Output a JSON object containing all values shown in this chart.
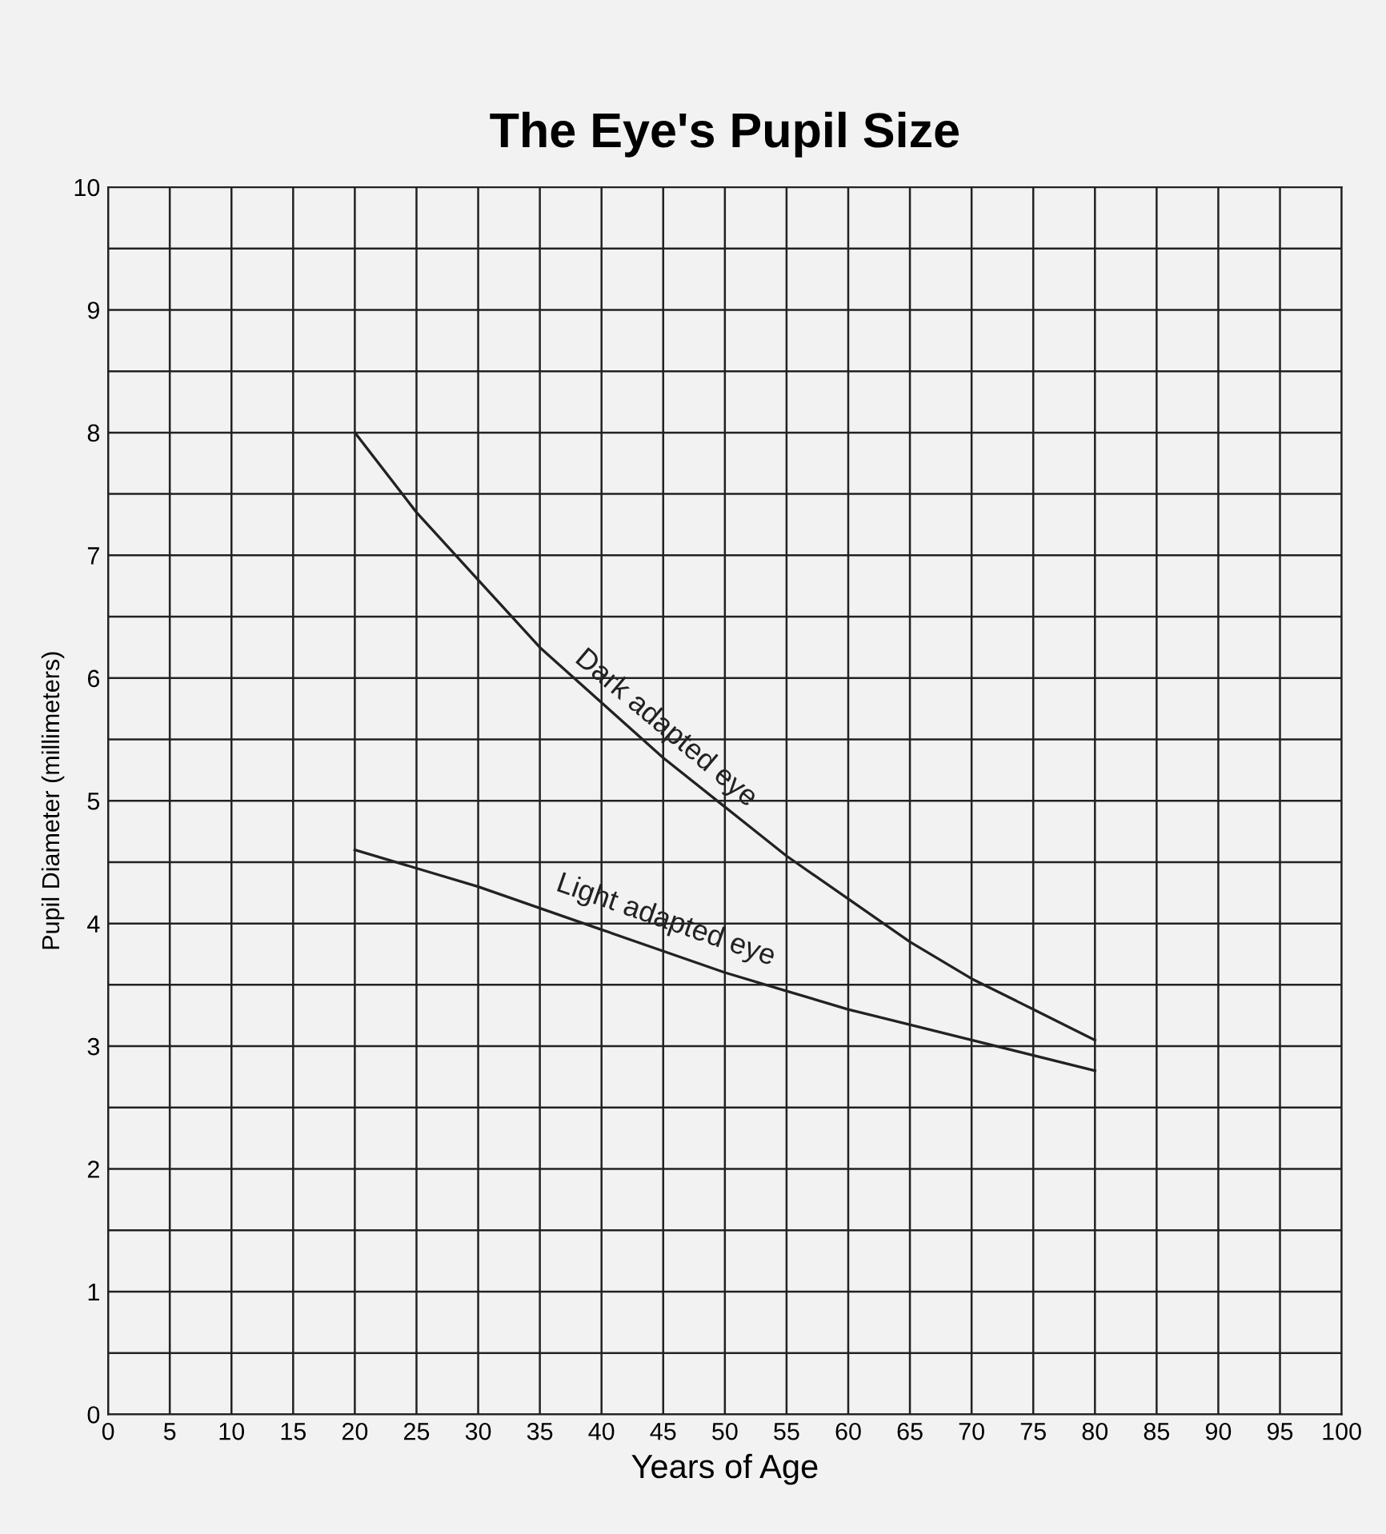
{
  "chart_data": {
    "type": "line",
    "title": "The Eye's Pupil Size",
    "xlabel": "Years of Age",
    "ylabel": "Pupil Diameter (millimeters)",
    "xlim": [
      0,
      100
    ],
    "xticks": [
      0,
      5,
      10,
      15,
      20,
      25,
      30,
      35,
      40,
      45,
      50,
      55,
      60,
      65,
      70,
      75,
      80,
      85,
      90,
      95,
      100
    ],
    "ylim": [
      0,
      10
    ],
    "yticks": [
      0,
      {
        "value": 0.5,
        "label": null
      },
      1,
      {
        "value": 1.5,
        "label": null
      },
      2,
      {
        "value": 2.5,
        "label": null
      },
      3,
      {
        "value": 3.5,
        "label": null
      },
      4,
      {
        "value": 4.5,
        "label": null
      },
      5,
      {
        "value": 5.5,
        "label": null
      },
      6,
      {
        "value": 6.5,
        "label": null
      },
      7,
      {
        "value": 7.5,
        "label": null
      },
      8,
      {
        "value": 8.5,
        "label": null
      },
      9,
      {
        "value": 9.5,
        "label": null
      },
      10
    ],
    "grid": true,
    "legend": false,
    "marker": "none",
    "line_style": "solid",
    "series": [
      {
        "name": "Dark adapted eye",
        "color": "#222222",
        "x": [
          20,
          25,
          30,
          35,
          40,
          45,
          50,
          55,
          60,
          65,
          70,
          75,
          80
        ],
        "values": [
          8.0,
          7.35,
          6.8,
          6.25,
          5.8,
          5.35,
          4.95,
          4.55,
          4.2,
          3.85,
          3.55,
          3.3,
          3.05
        ]
      },
      {
        "name": "Light adapted eye",
        "color": "#222222",
        "x": [
          20,
          30,
          40,
          50,
          55,
          60,
          70,
          80
        ],
        "values": [
          4.6,
          4.3,
          3.95,
          3.6,
          3.45,
          3.3,
          3.05,
          2.8
        ]
      }
    ]
  }
}
